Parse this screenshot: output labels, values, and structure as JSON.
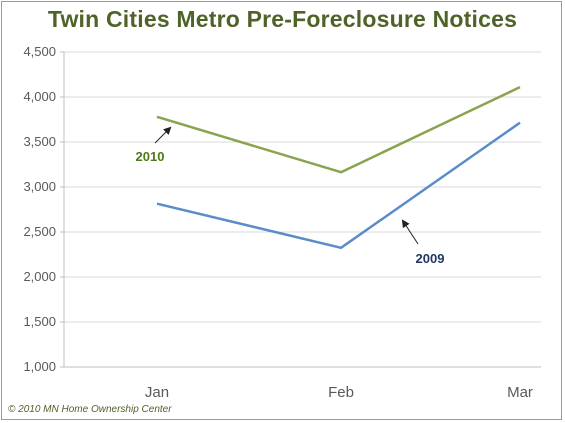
{
  "chart_data": {
    "type": "line",
    "title": "Twin Cities Metro Pre-Foreclosure Notices",
    "categories": [
      "Jan",
      "Feb",
      "Mar"
    ],
    "series": [
      {
        "name": "2010",
        "values": [
          3780,
          3165,
          4110
        ],
        "color": "#8aa34f"
      },
      {
        "name": "2009",
        "values": [
          2815,
          2325,
          3715
        ],
        "color": "#5b8cc8"
      }
    ],
    "ylim": [
      1000,
      4500
    ],
    "y_ticks": [
      "1,000",
      "1,500",
      "2,000",
      "2,500",
      "3,000",
      "3,500",
      "4,000",
      "4,500"
    ],
    "grid": true,
    "annotations": [
      {
        "text": "2010",
        "color": "#4f7a18"
      },
      {
        "text": "2009",
        "color": "#1f3864"
      }
    ]
  },
  "footer": {
    "copyright": "© 2010 MN Home Ownership Center"
  }
}
